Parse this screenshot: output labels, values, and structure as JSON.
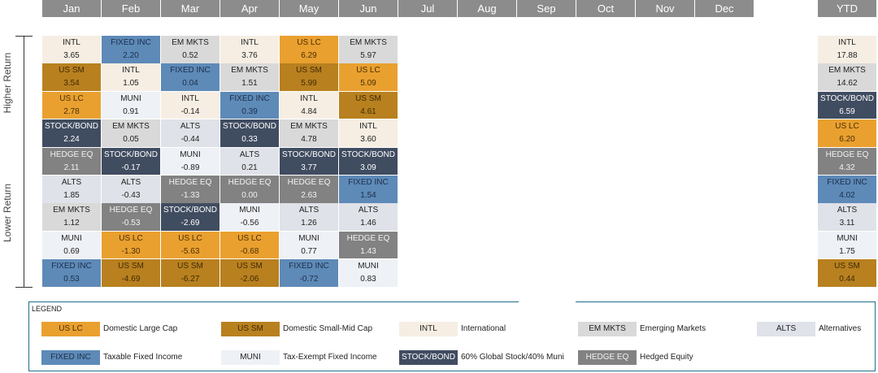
{
  "chart_data": {
    "type": "table",
    "title": "",
    "months": [
      "Jan",
      "Feb",
      "Mar",
      "Apr",
      "May",
      "Jun",
      "Jul",
      "Aug",
      "Sep",
      "Oct",
      "Nov",
      "Dec"
    ],
    "ytd_label": "YTD",
    "y_axis": {
      "top_label": "Higher Return",
      "bottom_label": "Lower Return"
    },
    "columns": [
      [
        [
          "INTL",
          "3.65"
        ],
        [
          "US SM",
          "3.54"
        ],
        [
          "US LC",
          "2.78"
        ],
        [
          "STOCK/BOND",
          "2.24"
        ],
        [
          "HEDGE EQ",
          "2.11"
        ],
        [
          "ALTS",
          "1.85"
        ],
        [
          "EM MKTS",
          "1.12"
        ],
        [
          "MUNI",
          "0.69"
        ],
        [
          "FIXED INC",
          "0.53"
        ]
      ],
      [
        [
          "FIXED INC",
          "2.20"
        ],
        [
          "INTL",
          "1.05"
        ],
        [
          "MUNI",
          "0.91"
        ],
        [
          "EM MKTS",
          "0.05"
        ],
        [
          "STOCK/BOND",
          "-0.17"
        ],
        [
          "ALTS",
          "-0.43"
        ],
        [
          "HEDGE EQ",
          "-0.53"
        ],
        [
          "US LC",
          "-1.30"
        ],
        [
          "US SM",
          "-4.69"
        ]
      ],
      [
        [
          "EM MKTS",
          "0.52"
        ],
        [
          "FIXED INC",
          "0.04"
        ],
        [
          "INTL",
          "-0.14"
        ],
        [
          "ALTS",
          "-0.44"
        ],
        [
          "MUNI",
          "-0.89"
        ],
        [
          "HEDGE EQ",
          "-1.33"
        ],
        [
          "STOCK/BOND",
          "-2.69"
        ],
        [
          "US LC",
          "-5.63"
        ],
        [
          "US SM",
          "-6.27"
        ]
      ],
      [
        [
          "INTL",
          "3.76"
        ],
        [
          "EM MKTS",
          "1.51"
        ],
        [
          "FIXED INC",
          "0.39"
        ],
        [
          "STOCK/BOND",
          "0.33"
        ],
        [
          "ALTS",
          "0.21"
        ],
        [
          "HEDGE EQ",
          "0.00"
        ],
        [
          "MUNI",
          "-0.56"
        ],
        [
          "US LC",
          "-0.68"
        ],
        [
          "US SM",
          "-2.06"
        ]
      ],
      [
        [
          "US LC",
          "6.29"
        ],
        [
          "US SM",
          "5.99"
        ],
        [
          "INTL",
          "4.84"
        ],
        [
          "EM MKTS",
          "4.78"
        ],
        [
          "STOCK/BOND",
          "3.77"
        ],
        [
          "HEDGE EQ",
          "2.63"
        ],
        [
          "ALTS",
          "1.26"
        ],
        [
          "MUNI",
          "0.77"
        ],
        [
          "FIXED INC",
          "-0.72"
        ]
      ],
      [
        [
          "EM MKTS",
          "5.97"
        ],
        [
          "US LC",
          "5.09"
        ],
        [
          "US SM",
          "4.61"
        ],
        [
          "INTL",
          "3.60"
        ],
        [
          "STOCK/BOND",
          "3.09"
        ],
        [
          "FIXED INC",
          "1.54"
        ],
        [
          "ALTS",
          "1.46"
        ],
        [
          "HEDGE EQ",
          "1.43"
        ],
        [
          "MUNI",
          "0.83"
        ]
      ]
    ],
    "ytd": [
      [
        "INTL",
        "17.88"
      ],
      [
        "EM MKTS",
        "14.62"
      ],
      [
        "STOCK/BOND",
        "6.59"
      ],
      [
        "US LC",
        "6.20"
      ],
      [
        "HEDGE EQ",
        "4.32"
      ],
      [
        "FIXED INC",
        "4.02"
      ],
      [
        "ALTS",
        "3.11"
      ],
      [
        "MUNI",
        "1.75"
      ],
      [
        "US SM",
        "0.44"
      ]
    ],
    "colors": {
      "US LC": {
        "bg": "#e9a02f",
        "fg": "#4a2e05"
      },
      "US SM": {
        "bg": "#b8801f",
        "fg": "#3f2a05"
      },
      "INTL": {
        "bg": "#f6eee3",
        "fg": "#222222"
      },
      "EM MKTS": {
        "bg": "#d9d9d9",
        "fg": "#222222"
      },
      "ALTS": {
        "bg": "#dfe2e8",
        "fg": "#222222"
      },
      "FIXED INC": {
        "bg": "#5e8ab8",
        "fg": "#1c2f48"
      },
      "MUNI": {
        "bg": "#eef1f6",
        "fg": "#222222"
      },
      "STOCK/BOND": {
        "bg": "#404c60",
        "fg": "#ffffff"
      },
      "HEDGE EQ": {
        "bg": "#828282",
        "fg": "#f2f2f2"
      }
    }
  },
  "legend": {
    "title": "LEGEND",
    "items": [
      {
        "key": "US LC",
        "desc": "Domestic Large Cap"
      },
      {
        "key": "US SM",
        "desc": "Domestic Small-Mid Cap"
      },
      {
        "key": "INTL",
        "desc": "International"
      },
      {
        "key": "EM MKTS",
        "desc": "Emerging Markets"
      },
      {
        "key": "ALTS",
        "desc": "Alternatives"
      },
      {
        "key": "FIXED INC",
        "desc": "Taxable Fixed Income"
      },
      {
        "key": "MUNI",
        "desc": "Tax-Exempt Fixed Income"
      },
      {
        "key": "STOCK/BOND",
        "desc": "60% Global Stock/40% Muni"
      },
      {
        "key": "HEDGE EQ",
        "desc": "Hedged Equity"
      }
    ]
  }
}
